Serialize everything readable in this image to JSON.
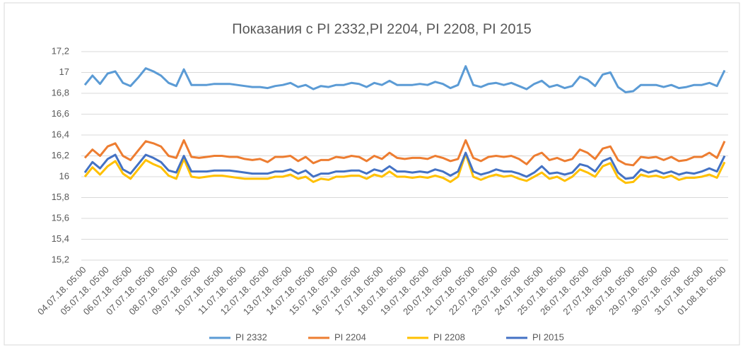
{
  "chart_data": {
    "type": "line",
    "title": "Показания с PI 2332,PI 2204, PI 2208, PI 2015",
    "categories": [
      "04.07.18. 05:00",
      null,
      null,
      "05.07.18. 05:00",
      null,
      null,
      "06.07.18. 05:00",
      null,
      null,
      "07.07.18. 05:00",
      null,
      null,
      "08.07.18. 05:00",
      null,
      null,
      "09.07.18. 05:00",
      null,
      null,
      "10.07.18. 05:00",
      null,
      null,
      "11.07.18. 05:00",
      null,
      null,
      "12.07.18. 05:00",
      null,
      null,
      "13.07.18. 05:00",
      null,
      null,
      "14.07.18. 05:00",
      null,
      null,
      "15.07.18. 05:00",
      null,
      null,
      "16.07.18. 05:00",
      null,
      null,
      "17.07.18. 05:00",
      null,
      null,
      "18.07.18. 05:00",
      null,
      null,
      "19.07.18. 05:00",
      null,
      null,
      "20.07.18. 05:00",
      null,
      null,
      "21.07.18. 05:00",
      null,
      null,
      "22.07.18. 05:00",
      null,
      null,
      "23.07.18. 05:00",
      null,
      null,
      "24.07.18. 05:00",
      null,
      null,
      "25.07.18. 05:00",
      null,
      null,
      "26.07.18. 05:00",
      null,
      null,
      "27.07.18. 05:00",
      null,
      null,
      "28.07.18. 05:00",
      null,
      null,
      "29.07.18. 05:00",
      null,
      null,
      "30.07.18. 05:00",
      null,
      null,
      "31.07.18. 05:00",
      null,
      null,
      "01.08.18. 05:00"
    ],
    "series": [
      {
        "name": "PI 2332",
        "color": "#5b9bd5",
        "values": [
          16.88,
          16.97,
          16.89,
          16.99,
          17.01,
          16.9,
          16.87,
          16.95,
          17.04,
          17.01,
          16.97,
          16.9,
          16.87,
          17.03,
          16.88,
          16.88,
          16.88,
          16.89,
          16.89,
          16.89,
          16.88,
          16.87,
          16.86,
          16.86,
          16.85,
          16.87,
          16.88,
          16.9,
          16.86,
          16.88,
          16.84,
          16.87,
          16.86,
          16.88,
          16.88,
          16.9,
          16.89,
          16.86,
          16.9,
          16.88,
          16.92,
          16.88,
          16.88,
          16.88,
          16.89,
          16.88,
          16.91,
          16.89,
          16.85,
          16.88,
          17.06,
          16.88,
          16.86,
          16.89,
          16.9,
          16.88,
          16.9,
          16.87,
          16.84,
          16.89,
          16.92,
          16.86,
          16.88,
          16.85,
          16.87,
          16.96,
          16.93,
          16.87,
          16.98,
          17.0,
          16.86,
          16.81,
          16.82,
          16.88,
          16.88,
          16.88,
          16.86,
          16.88,
          16.85,
          16.86,
          16.88,
          16.88,
          16.9,
          16.87,
          17.02
        ]
      },
      {
        "name": "PI 2204",
        "color": "#ed7d31",
        "values": [
          16.18,
          16.26,
          16.2,
          16.29,
          16.32,
          16.2,
          16.16,
          16.25,
          16.34,
          16.32,
          16.29,
          16.2,
          16.18,
          16.35,
          16.19,
          16.18,
          16.19,
          16.2,
          16.2,
          16.19,
          16.19,
          16.17,
          16.16,
          16.17,
          16.14,
          16.19,
          16.19,
          16.2,
          16.15,
          16.19,
          16.13,
          16.16,
          16.16,
          16.19,
          16.18,
          16.2,
          16.19,
          16.15,
          16.2,
          16.17,
          16.23,
          16.18,
          16.17,
          16.18,
          16.18,
          16.17,
          16.2,
          16.18,
          16.15,
          16.17,
          16.35,
          16.18,
          16.15,
          16.19,
          16.2,
          16.19,
          16.2,
          16.17,
          16.12,
          16.2,
          16.23,
          16.16,
          16.18,
          16.15,
          16.17,
          16.26,
          16.23,
          16.17,
          16.27,
          16.29,
          16.16,
          16.12,
          16.11,
          16.19,
          16.18,
          16.19,
          16.16,
          16.19,
          16.15,
          16.16,
          16.19,
          16.19,
          16.23,
          16.18,
          16.34
        ]
      },
      {
        "name": "PI 2208",
        "color": "#ffc000",
        "values": [
          16.0,
          16.09,
          16.02,
          16.1,
          16.15,
          16.03,
          15.98,
          16.07,
          16.16,
          16.12,
          16.09,
          16.01,
          15.98,
          16.17,
          16.0,
          15.99,
          16.0,
          16.01,
          16.01,
          16.0,
          15.99,
          15.98,
          15.98,
          15.98,
          15.98,
          16.0,
          16.0,
          16.02,
          15.98,
          16.0,
          15.95,
          15.98,
          15.97,
          16.0,
          16.0,
          16.01,
          16.01,
          15.98,
          16.02,
          16.0,
          16.05,
          16.0,
          16.0,
          15.99,
          16.0,
          15.99,
          16.01,
          15.99,
          15.95,
          16.0,
          16.22,
          16.0,
          15.97,
          16.0,
          16.02,
          16.0,
          16.01,
          15.98,
          15.96,
          16.0,
          16.04,
          15.98,
          16.0,
          15.96,
          16.0,
          16.07,
          16.04,
          16.0,
          16.1,
          16.13,
          15.99,
          15.94,
          15.95,
          16.02,
          16.0,
          16.01,
          15.99,
          16.01,
          15.97,
          15.99,
          15.99,
          16.0,
          16.02,
          15.99,
          16.14
        ]
      },
      {
        "name": "PI 2015",
        "color": "#4472c4",
        "values": [
          16.04,
          16.14,
          16.08,
          16.17,
          16.21,
          16.07,
          16.03,
          16.12,
          16.21,
          16.18,
          16.14,
          16.06,
          16.04,
          16.2,
          16.05,
          16.05,
          16.05,
          16.06,
          16.06,
          16.06,
          16.05,
          16.04,
          16.03,
          16.03,
          16.03,
          16.05,
          16.05,
          16.07,
          16.03,
          16.06,
          16.0,
          16.03,
          16.03,
          16.05,
          16.05,
          16.06,
          16.06,
          16.03,
          16.07,
          16.05,
          16.1,
          16.05,
          16.05,
          16.04,
          16.05,
          16.04,
          16.07,
          16.05,
          16.01,
          16.05,
          16.23,
          16.05,
          16.02,
          16.04,
          16.07,
          16.05,
          16.05,
          16.03,
          16.0,
          16.04,
          16.1,
          16.03,
          16.04,
          16.02,
          16.04,
          16.12,
          16.1,
          16.05,
          16.15,
          16.18,
          16.04,
          15.98,
          15.99,
          16.07,
          16.04,
          16.06,
          16.03,
          16.05,
          16.02,
          16.04,
          16.03,
          16.05,
          16.08,
          16.05,
          16.2
        ]
      }
    ],
    "ylim": [
      15.2,
      17.2
    ],
    "yticks": [
      {
        "value": 15.2,
        "label": "15,2"
      },
      {
        "value": 15.4,
        "label": "15,4"
      },
      {
        "value": 15.6,
        "label": "15,6"
      },
      {
        "value": 15.8,
        "label": "15,8"
      },
      16,
      {
        "value": 16.2,
        "label": "16,2"
      },
      {
        "value": 16.4,
        "label": "16,4"
      },
      {
        "value": 16.6,
        "label": "16,6"
      },
      {
        "value": 16.8,
        "label": "16,8"
      },
      17,
      {
        "value": 17.2,
        "label": "17,2"
      }
    ],
    "grid": true,
    "legend": "bottom"
  }
}
